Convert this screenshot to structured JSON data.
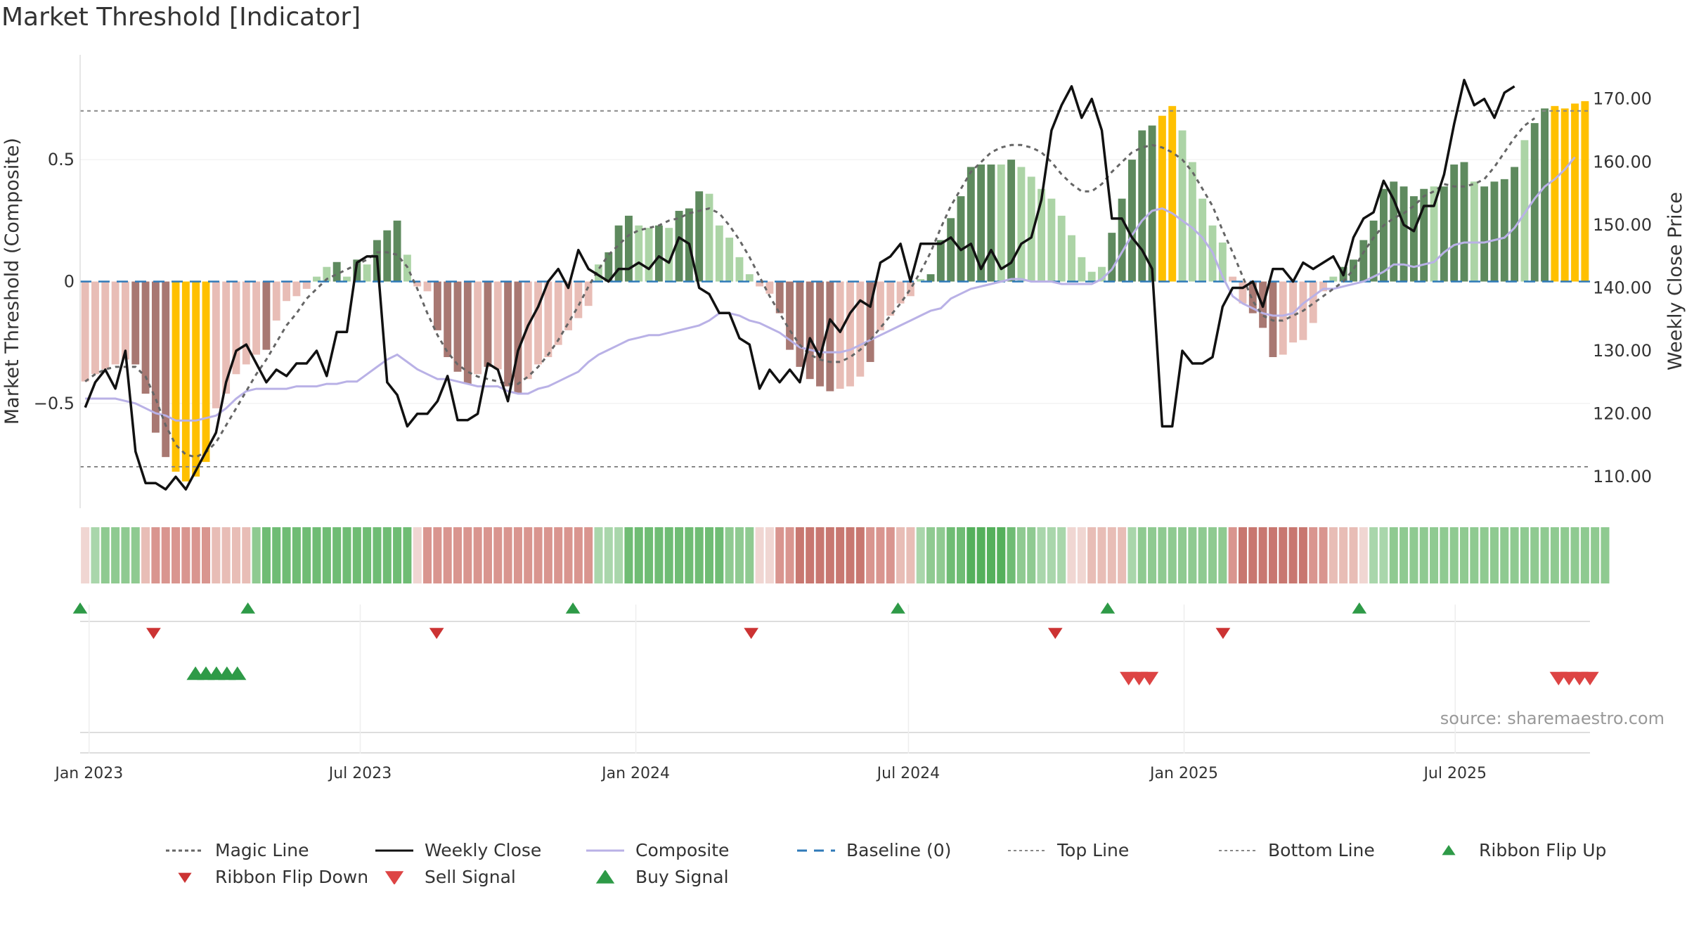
{
  "title": "Market Threshold [Indicator]",
  "source": "source: sharemaestro.com",
  "chart_data": {
    "type": "bar",
    "title": "Market Threshold [Indicator]",
    "ylabel_left": "Market Threshold (Composite)",
    "ylabel_right": "Weekly Close Price",
    "ylim_left": [
      -0.93,
      0.93
    ],
    "ylim_right": [
      105,
      177
    ],
    "yticks_left": [
      {
        "v": 0.5,
        "label": "0.5"
      },
      {
        "v": 0,
        "label": "0"
      },
      {
        "v": -0.5,
        "label": "−0.5"
      }
    ],
    "yticks_right": [
      {
        "v": 170,
        "label": "170.00"
      },
      {
        "v": 160,
        "label": "160.00"
      },
      {
        "v": 150,
        "label": "150.00"
      },
      {
        "v": 140,
        "label": "140.00"
      },
      {
        "v": 130,
        "label": "130.00"
      },
      {
        "v": 120,
        "label": "120.00"
      },
      {
        "v": 110,
        "label": "110.00"
      }
    ],
    "top_line": 0.7,
    "bottom_line": -0.76,
    "date_start": "2022-12-26",
    "date_end": "2025-09-29",
    "xticks": [
      {
        "date": "2023-01-01",
        "label": "Jan 2023"
      },
      {
        "date": "2023-07-01",
        "label": "Jul 2023"
      },
      {
        "date": "2024-01-01",
        "label": "Jan 2024"
      },
      {
        "date": "2024-07-01",
        "label": "Jul 2024"
      },
      {
        "date": "2025-01-01",
        "label": "Jan 2025"
      },
      {
        "date": "2025-07-01",
        "label": "Jul 2025"
      }
    ],
    "composite_bars": [
      -0.41,
      -0.38,
      -0.36,
      -0.34,
      -0.32,
      -0.34,
      -0.46,
      -0.62,
      -0.72,
      -0.78,
      -0.82,
      -0.8,
      -0.74,
      -0.52,
      -0.46,
      -0.38,
      -0.34,
      -0.3,
      -0.28,
      -0.16,
      -0.08,
      -0.06,
      -0.03,
      0.02,
      0.06,
      0.08,
      0.02,
      0.09,
      0.07,
      0.17,
      0.21,
      0.25,
      0.11,
      -0.02,
      -0.04,
      -0.2,
      -0.31,
      -0.37,
      -0.42,
      -0.38,
      -0.35,
      -0.36,
      -0.43,
      -0.46,
      -0.4,
      -0.34,
      -0.31,
      -0.26,
      -0.2,
      -0.15,
      -0.1,
      0.07,
      0.12,
      0.23,
      0.27,
      0.23,
      0.22,
      0.23,
      0.22,
      0.29,
      0.3,
      0.37,
      0.36,
      0.23,
      0.18,
      0.1,
      0.03,
      -0.02,
      -0.05,
      -0.13,
      -0.28,
      -0.35,
      -0.4,
      -0.43,
      -0.45,
      -0.44,
      -0.43,
      -0.39,
      -0.33,
      -0.2,
      -0.14,
      -0.09,
      -0.06,
      0.01,
      0.03,
      0.17,
      0.26,
      0.35,
      0.47,
      0.48,
      0.48,
      0.48,
      0.5,
      0.47,
      0.43,
      0.38,
      0.34,
      0.27,
      0.19,
      0.1,
      0.04,
      0.06,
      0.2,
      0.34,
      0.5,
      0.62,
      0.64,
      0.68,
      0.72,
      0.62,
      0.49,
      0.34,
      0.23,
      0.16,
      0.02,
      -0.09,
      -0.13,
      -0.19,
      -0.31,
      -0.3,
      -0.25,
      -0.24,
      -0.17,
      -0.04,
      0.02,
      0.06,
      0.09,
      0.17,
      0.25,
      0.38,
      0.41,
      0.39,
      0.35,
      0.38,
      0.39,
      0.39,
      0.48,
      0.49,
      0.41,
      0.39,
      0.41,
      0.42,
      0.47,
      0.58,
      0.65,
      0.71,
      0.72,
      0.71,
      0.73,
      0.74
    ],
    "composite_line": [
      -0.48,
      -0.48,
      -0.48,
      -0.48,
      -0.49,
      -0.5,
      -0.52,
      -0.54,
      -0.55,
      -0.57,
      -0.57,
      -0.57,
      -0.56,
      -0.55,
      -0.52,
      -0.48,
      -0.45,
      -0.44,
      -0.44,
      -0.44,
      -0.44,
      -0.43,
      -0.43,
      -0.43,
      -0.42,
      -0.42,
      -0.41,
      -0.41,
      -0.38,
      -0.35,
      -0.32,
      -0.3,
      -0.33,
      -0.36,
      -0.38,
      -0.4,
      -0.4,
      -0.41,
      -0.42,
      -0.43,
      -0.43,
      -0.43,
      -0.45,
      -0.46,
      -0.46,
      -0.44,
      -0.43,
      -0.41,
      -0.39,
      -0.37,
      -0.33,
      -0.3,
      -0.28,
      -0.26,
      -0.24,
      -0.23,
      -0.22,
      -0.22,
      -0.21,
      -0.2,
      -0.19,
      -0.18,
      -0.16,
      -0.13,
      -0.13,
      -0.14,
      -0.16,
      -0.17,
      -0.19,
      -0.21,
      -0.24,
      -0.27,
      -0.28,
      -0.29,
      -0.29,
      -0.29,
      -0.28,
      -0.26,
      -0.24,
      -0.22,
      -0.2,
      -0.18,
      -0.16,
      -0.14,
      -0.12,
      -0.11,
      -0.07,
      -0.05,
      -0.03,
      -0.02,
      -0.01,
      0.0,
      0.01,
      0.01,
      0.0,
      0.0,
      0.0,
      -0.01,
      -0.01,
      -0.01,
      -0.01,
      0.01,
      0.05,
      0.12,
      0.19,
      0.25,
      0.29,
      0.3,
      0.28,
      0.25,
      0.22,
      0.18,
      0.12,
      0.02,
      -0.06,
      -0.09,
      -0.11,
      -0.13,
      -0.14,
      -0.14,
      -0.13,
      -0.09,
      -0.06,
      -0.03,
      -0.03,
      -0.02,
      -0.01,
      0.0,
      0.02,
      0.04,
      0.07,
      0.07,
      0.06,
      0.07,
      0.08,
      0.12,
      0.15,
      0.16,
      0.16,
      0.16,
      0.17,
      0.18,
      0.22,
      0.28,
      0.34,
      0.39,
      0.42,
      0.46,
      0.51
    ],
    "magic_line": [
      -0.41,
      -0.38,
      -0.36,
      -0.35,
      -0.35,
      -0.35,
      -0.39,
      -0.48,
      -0.59,
      -0.67,
      -0.71,
      -0.72,
      -0.7,
      -0.66,
      -0.59,
      -0.52,
      -0.45,
      -0.38,
      -0.32,
      -0.25,
      -0.18,
      -0.13,
      -0.07,
      -0.03,
      0.01,
      0.03,
      0.05,
      0.07,
      0.09,
      0.12,
      0.12,
      0.11,
      0.06,
      -0.03,
      -0.13,
      -0.22,
      -0.29,
      -0.34,
      -0.37,
      -0.39,
      -0.4,
      -0.41,
      -0.42,
      -0.42,
      -0.39,
      -0.35,
      -0.3,
      -0.24,
      -0.17,
      -0.1,
      -0.02,
      0.05,
      0.11,
      0.15,
      0.19,
      0.21,
      0.22,
      0.23,
      0.25,
      0.26,
      0.28,
      0.29,
      0.3,
      0.28,
      0.23,
      0.17,
      0.1,
      0.02,
      -0.06,
      -0.13,
      -0.2,
      -0.26,
      -0.3,
      -0.32,
      -0.33,
      -0.33,
      -0.31,
      -0.28,
      -0.24,
      -0.19,
      -0.14,
      -0.09,
      -0.03,
      0.04,
      0.12,
      0.22,
      0.31,
      0.38,
      0.45,
      0.49,
      0.53,
      0.55,
      0.56,
      0.56,
      0.55,
      0.53,
      0.49,
      0.44,
      0.4,
      0.37,
      0.37,
      0.4,
      0.45,
      0.49,
      0.53,
      0.55,
      0.56,
      0.55,
      0.53,
      0.5,
      0.45,
      0.38,
      0.31,
      0.21,
      0.12,
      0.02,
      -0.08,
      -0.14,
      -0.16,
      -0.16,
      -0.14,
      -0.12,
      -0.09,
      -0.06,
      -0.03,
      0.0,
      0.05,
      0.12,
      0.18,
      0.23,
      0.26,
      0.28,
      0.31,
      0.35,
      0.37,
      0.4,
      0.39,
      0.39,
      0.4,
      0.42,
      0.47,
      0.53,
      0.59,
      0.64,
      0.67
    ],
    "weekly_close": [
      121,
      125,
      127,
      124,
      130,
      114,
      109,
      109,
      108,
      110,
      108,
      111,
      114,
      117,
      125,
      130,
      131,
      128,
      125,
      127,
      126,
      128,
      128,
      130,
      126,
      133,
      133,
      144,
      145,
      145,
      125,
      123,
      118,
      120,
      120,
      122,
      126,
      119,
      119,
      120,
      128,
      127,
      122,
      130,
      134,
      137,
      141,
      143,
      140,
      146,
      143,
      142,
      141,
      143,
      143,
      144,
      143,
      145,
      144,
      148,
      147,
      140,
      139,
      136,
      136,
      132,
      131,
      124,
      127,
      125,
      127,
      125,
      132,
      129,
      135,
      133,
      136,
      138,
      137,
      144,
      145,
      147,
      141,
      147,
      147,
      147,
      148,
      146,
      147,
      143,
      146,
      143,
      144,
      147,
      148,
      154,
      165,
      169,
      172,
      167,
      170,
      165,
      151,
      151,
      148,
      146,
      143,
      118,
      118,
      130,
      128,
      128,
      129,
      137,
      140,
      140,
      141,
      137,
      143,
      143,
      141,
      144,
      143,
      144,
      145,
      142,
      148,
      151,
      152,
      157,
      154,
      150,
      149,
      153,
      153,
      158,
      166,
      173,
      169,
      170,
      167,
      171,
      172
    ],
    "bar_colors": {
      "strong_pos": "#5e8a5e",
      "light_pos": "#acd4a6",
      "strong_neg": "#a87872",
      "light_neg": "#e8bdb6",
      "extreme": "#ffc000"
    },
    "bar_color_seq": [
      "ln",
      "ln",
      "ln",
      "ln",
      "ln",
      "sn",
      "sn",
      "sn",
      "sn",
      "x",
      "x",
      "x",
      "x",
      "ln",
      "ln",
      "ln",
      "ln",
      "ln",
      "sn",
      "ln",
      "ln",
      "ln",
      "ln",
      "lp",
      "lp",
      "sp",
      "lp",
      "sp",
      "lp",
      "sp",
      "sp",
      "sp",
      "lp",
      "ln",
      "ln",
      "sn",
      "sn",
      "sn",
      "sn",
      "ln",
      "sn",
      "ln",
      "sn",
      "sn",
      "ln",
      "ln",
      "ln",
      "ln",
      "ln",
      "ln",
      "ln",
      "lp",
      "sp",
      "sp",
      "sp",
      "lp",
      "lp",
      "sp",
      "lp",
      "sp",
      "sp",
      "sp",
      "lp",
      "lp",
      "lp",
      "lp",
      "lp",
      "ln",
      "ln",
      "sn",
      "sn",
      "sn",
      "sn",
      "sn",
      "sn",
      "ln",
      "ln",
      "ln",
      "sn",
      "ln",
      "ln",
      "ln",
      "ln",
      "lp",
      "sp",
      "sp",
      "sp",
      "sp",
      "sp",
      "sp",
      "sp",
      "lp",
      "sp",
      "lp",
      "lp",
      "lp",
      "lp",
      "lp",
      "lp",
      "lp",
      "lp",
      "lp",
      "sp",
      "sp",
      "sp",
      "sp",
      "sp",
      "x",
      "x",
      "lp",
      "lp",
      "lp",
      "lp",
      "lp",
      "ln",
      "ln",
      "sn",
      "sn",
      "sn",
      "ln",
      "ln",
      "ln",
      "ln",
      "ln",
      "lp",
      "sp",
      "sp",
      "sp",
      "sp",
      "sp",
      "sp",
      "sp",
      "sp",
      "sp",
      "lp",
      "sp",
      "sp",
      "sp",
      "lp",
      "sp",
      "sp",
      "sp",
      "sp",
      "lp",
      "sp",
      "sp",
      "x",
      "x",
      "x",
      "x"
    ],
    "ribbon_colors": [
      "#f0d6d2",
      "#a9d6ab",
      "#8fca91",
      "#8fca91",
      "#8fca91",
      "#8fca91",
      "#e8bdb6",
      "#d9958f",
      "#d9958f",
      "#d9958f",
      "#d9958f",
      "#d9958f",
      "#d9958f",
      "#e8bdb6",
      "#e8bdb6",
      "#e8bdb6",
      "#e8bdb6",
      "#8fca91",
      "#6fbc74",
      "#6fbc74",
      "#6fbc74",
      "#6fbc74",
      "#6fbc74",
      "#6fbc74",
      "#6fbc74",
      "#6fbc74",
      "#6fbc74",
      "#6fbc74",
      "#6fbc74",
      "#6fbc74",
      "#6fbc74",
      "#6fbc74",
      "#6fbc74",
      "#f0d6d2",
      "#d9958f",
      "#d9958f",
      "#d9958f",
      "#d9958f",
      "#d9958f",
      "#d9958f",
      "#d9958f",
      "#d9958f",
      "#d9958f",
      "#d9958f",
      "#d9958f",
      "#d9958f",
      "#d9958f",
      "#d9958f",
      "#d9958f",
      "#d9958f",
      "#d9958f",
      "#a9d6ab",
      "#a9d6ab",
      "#a9d6ab",
      "#6fbc74",
      "#6fbc74",
      "#6fbc74",
      "#6fbc74",
      "#6fbc74",
      "#6fbc74",
      "#6fbc74",
      "#6fbc74",
      "#6fbc74",
      "#6fbc74",
      "#8fca91",
      "#8fca91",
      "#8fca91",
      "#f0d6d2",
      "#f0d6d2",
      "#d9958f",
      "#d9958f",
      "#c87770",
      "#c87770",
      "#c87770",
      "#c87770",
      "#c87770",
      "#c87770",
      "#c87770",
      "#d9958f",
      "#d9958f",
      "#d9958f",
      "#e8bdb6",
      "#e8bdb6",
      "#a9d6ab",
      "#8fca91",
      "#8fca91",
      "#6fbc74",
      "#6fbc74",
      "#55b05c",
      "#55b05c",
      "#55b05c",
      "#55b05c",
      "#6fbc74",
      "#8fca91",
      "#8fca91",
      "#a9d6ab",
      "#a9d6ab",
      "#a9d6ab",
      "#f0d6d2",
      "#f0d6d2",
      "#e8bdb6",
      "#e8bdb6",
      "#e8bdb6",
      "#e8bdb6",
      "#a9d6ab",
      "#8fca91",
      "#8fca91",
      "#8fca91",
      "#8fca91",
      "#8fca91",
      "#8fca91",
      "#8fca91",
      "#8fca91",
      "#8fca91",
      "#d9958f",
      "#c87770",
      "#c87770",
      "#c87770",
      "#c87770",
      "#c87770",
      "#c87770",
      "#c87770",
      "#d9958f",
      "#d9958f",
      "#e8bdb6",
      "#e8bdb6",
      "#e8bdb6",
      "#f0d6d2",
      "#a9d6ab",
      "#a9d6ab",
      "#8fca91",
      "#8fca91",
      "#8fca91",
      "#8fca91",
      "#8fca91",
      "#8fca91",
      "#8fca91",
      "#8fca91",
      "#8fca91",
      "#8fca91",
      "#8fca91",
      "#8fca91",
      "#8fca91",
      "#8fca91",
      "#8fca91",
      "#8fca91",
      "#8fca91",
      "#8fca91",
      "#8fca91",
      "#8fca91",
      "#8fca91",
      "#8fca91"
    ],
    "ribbon_flip_up": [
      "2022-12-26",
      "2023-04-17",
      "2023-11-20",
      "2024-06-24",
      "2024-11-11",
      "2025-04-28"
    ],
    "ribbon_flip_down": [
      "2023-02-13",
      "2023-08-21",
      "2024-03-18",
      "2024-10-07",
      "2025-01-27"
    ],
    "buy_signals": [
      "2023-03-13",
      "2023-03-20",
      "2023-03-27",
      "2023-04-03",
      "2023-04-10"
    ],
    "sell_signals": [
      "2024-11-25",
      "2024-12-02",
      "2024-12-09",
      "2025-09-08",
      "2025-09-15",
      "2025-09-22",
      "2025-09-29"
    ],
    "legend": [
      {
        "label": "Magic Line",
        "style": "dotted",
        "color": "#666666"
      },
      {
        "label": "Weekly Close",
        "style": "solid",
        "color": "#111111"
      },
      {
        "label": "Composite",
        "style": "solid",
        "color": "#b9b1e6"
      },
      {
        "label": "Baseline (0)",
        "style": "dashed",
        "color": "#2f7ab8"
      },
      {
        "label": "Top Line",
        "style": "dotted-thin",
        "color": "#888888"
      },
      {
        "label": "Bottom Line",
        "style": "dotted-thin",
        "color": "#888888"
      },
      {
        "label": "Ribbon Flip Up",
        "style": "tri-up-small",
        "color": "#2e9a47"
      },
      {
        "label": "Ribbon Flip Down",
        "style": "tri-down-small",
        "color": "#cc3333"
      },
      {
        "label": "Sell Signal",
        "style": "tri-down",
        "color": "#dd4444"
      },
      {
        "label": "Buy Signal",
        "style": "tri-up",
        "color": "#2e9a47"
      }
    ]
  }
}
